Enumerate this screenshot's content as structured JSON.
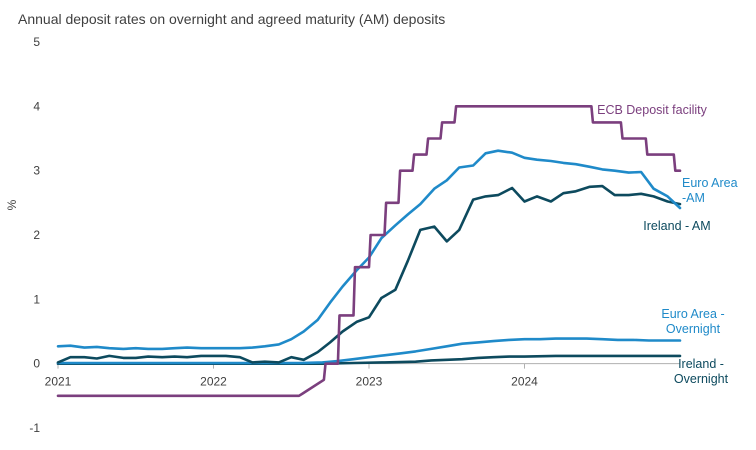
{
  "chart_data": {
    "type": "line",
    "title": "Annual deposit rates on overnight and agreed maturity (AM) deposits",
    "ylabel": "%",
    "xlabel": "",
    "ylim": [
      -1,
      5
    ],
    "yticks": [
      "5",
      "4",
      "3",
      "2",
      "1",
      "0",
      "-1"
    ],
    "xlim": [
      2021.0,
      2025.0
    ],
    "xticks": [
      "2021",
      "2022",
      "2023",
      "2024"
    ],
    "series": [
      {
        "name": "ECB Deposit facility",
        "label_lines": [
          "ECB Deposit facility"
        ],
        "color": "#7b3f7e",
        "x": [
          2021.0,
          2022.55,
          2022.57,
          2022.71,
          2022.72,
          2022.8,
          2022.81,
          2022.9,
          2022.91,
          2023.0,
          2023.01,
          2023.1,
          2023.11,
          2023.19,
          2023.2,
          2023.28,
          2023.29,
          2023.37,
          2023.38,
          2023.46,
          2023.47,
          2023.55,
          2023.56,
          2023.64,
          2023.66,
          2024.43,
          2024.44,
          2024.62,
          2024.63,
          2024.7,
          2024.71,
          2024.78,
          2024.79,
          2024.87,
          2024.88,
          2024.96,
          2024.97,
          2025.0
        ],
        "values": [
          -0.5,
          -0.5,
          -0.47,
          -0.25,
          0.0,
          0.0,
          0.75,
          0.75,
          1.5,
          1.5,
          2.0,
          2.0,
          2.5,
          2.5,
          3.0,
          3.0,
          3.25,
          3.25,
          3.5,
          3.5,
          3.75,
          3.75,
          4.0,
          4.0,
          4.0,
          4.0,
          3.75,
          3.75,
          3.5,
          3.5,
          3.5,
          3.5,
          3.25,
          3.25,
          3.25,
          3.25,
          3.0,
          3.0
        ]
      },
      {
        "name": "Euro Area - AM",
        "label_lines": [
          "Euro Area",
          "-AM"
        ],
        "color": "#1f8ac9",
        "x": [
          2021.0,
          2021.08,
          2021.17,
          2021.25,
          2021.33,
          2021.42,
          2021.5,
          2021.58,
          2021.67,
          2021.75,
          2021.83,
          2021.92,
          2022.0,
          2022.08,
          2022.17,
          2022.25,
          2022.33,
          2022.42,
          2022.5,
          2022.58,
          2022.67,
          2022.75,
          2022.83,
          2022.92,
          2023.0,
          2023.08,
          2023.17,
          2023.25,
          2023.33,
          2023.42,
          2023.5,
          2023.58,
          2023.67,
          2023.75,
          2023.83,
          2023.92,
          2024.0,
          2024.08,
          2024.17,
          2024.25,
          2024.33,
          2024.42,
          2024.5,
          2024.58,
          2024.67,
          2024.75,
          2024.83,
          2024.92,
          2025.0
        ],
        "values": [
          0.27,
          0.28,
          0.25,
          0.26,
          0.24,
          0.23,
          0.24,
          0.23,
          0.23,
          0.24,
          0.25,
          0.24,
          0.24,
          0.24,
          0.24,
          0.25,
          0.27,
          0.3,
          0.38,
          0.5,
          0.68,
          0.95,
          1.2,
          1.45,
          1.65,
          1.95,
          2.15,
          2.32,
          2.48,
          2.72,
          2.85,
          3.05,
          3.08,
          3.27,
          3.31,
          3.28,
          3.2,
          3.17,
          3.15,
          3.12,
          3.1,
          3.06,
          3.02,
          3.0,
          2.97,
          2.98,
          2.72,
          2.6,
          2.42
        ]
      },
      {
        "name": "Ireland - AM",
        "label_lines": [
          "Ireland - AM"
        ],
        "color": "#0d4a5e",
        "x": [
          2021.0,
          2021.08,
          2021.17,
          2021.25,
          2021.33,
          2021.42,
          2021.5,
          2021.58,
          2021.67,
          2021.75,
          2021.83,
          2021.92,
          2022.0,
          2022.08,
          2022.17,
          2022.25,
          2022.33,
          2022.42,
          2022.5,
          2022.58,
          2022.67,
          2022.75,
          2022.83,
          2022.92,
          2023.0,
          2023.08,
          2023.17,
          2023.25,
          2023.33,
          2023.42,
          2023.5,
          2023.58,
          2023.67,
          2023.75,
          2023.83,
          2023.92,
          2024.0,
          2024.08,
          2024.17,
          2024.25,
          2024.33,
          2024.42,
          2024.5,
          2024.58,
          2024.67,
          2024.75,
          2024.83,
          2024.92,
          2025.0
        ],
        "values": [
          0.02,
          0.1,
          0.1,
          0.08,
          0.12,
          0.09,
          0.09,
          0.11,
          0.1,
          0.11,
          0.1,
          0.12,
          0.12,
          0.12,
          0.1,
          0.02,
          0.03,
          0.02,
          0.1,
          0.06,
          0.18,
          0.33,
          0.5,
          0.65,
          0.72,
          1.02,
          1.15,
          1.6,
          2.08,
          2.13,
          1.9,
          2.08,
          2.55,
          2.6,
          2.62,
          2.73,
          2.52,
          2.6,
          2.52,
          2.65,
          2.68,
          2.75,
          2.76,
          2.62,
          2.62,
          2.64,
          2.6,
          2.52,
          2.48
        ]
      },
      {
        "name": "Euro Area - Overnight",
        "label_lines": [
          "Euro Area -",
          "Overnight"
        ],
        "color": "#1f8ac9",
        "x": [
          2021.0,
          2021.5,
          2022.0,
          2022.4,
          2022.55,
          2022.7,
          2022.8,
          2022.9,
          2023.0,
          2023.1,
          2023.2,
          2023.3,
          2023.4,
          2023.5,
          2023.6,
          2023.7,
          2023.8,
          2023.9,
          2024.0,
          2024.1,
          2024.2,
          2024.3,
          2024.4,
          2024.5,
          2024.6,
          2024.7,
          2024.8,
          2024.9,
          2025.0
        ],
        "values": [
          0.01,
          0.01,
          0.01,
          0.01,
          0.01,
          0.02,
          0.04,
          0.07,
          0.1,
          0.13,
          0.16,
          0.19,
          0.23,
          0.27,
          0.31,
          0.33,
          0.35,
          0.37,
          0.38,
          0.38,
          0.39,
          0.39,
          0.39,
          0.38,
          0.37,
          0.37,
          0.36,
          0.36,
          0.36
        ]
      },
      {
        "name": "Ireland - Overnight",
        "label_lines": [
          "Ireland -",
          "Overnight"
        ],
        "color": "#0d4a5e",
        "x": [
          2021.0,
          2021.5,
          2022.0,
          2022.5,
          2022.7,
          2022.9,
          2023.1,
          2023.3,
          2023.4,
          2023.5,
          2023.6,
          2023.7,
          2023.8,
          2023.9,
          2024.0,
          2024.2,
          2024.4,
          2024.6,
          2024.8,
          2025.0
        ],
        "values": [
          0.0,
          0.0,
          0.0,
          0.0,
          0.0,
          0.01,
          0.02,
          0.03,
          0.05,
          0.06,
          0.07,
          0.09,
          0.1,
          0.11,
          0.11,
          0.12,
          0.12,
          0.12,
          0.12,
          0.12
        ]
      }
    ]
  }
}
